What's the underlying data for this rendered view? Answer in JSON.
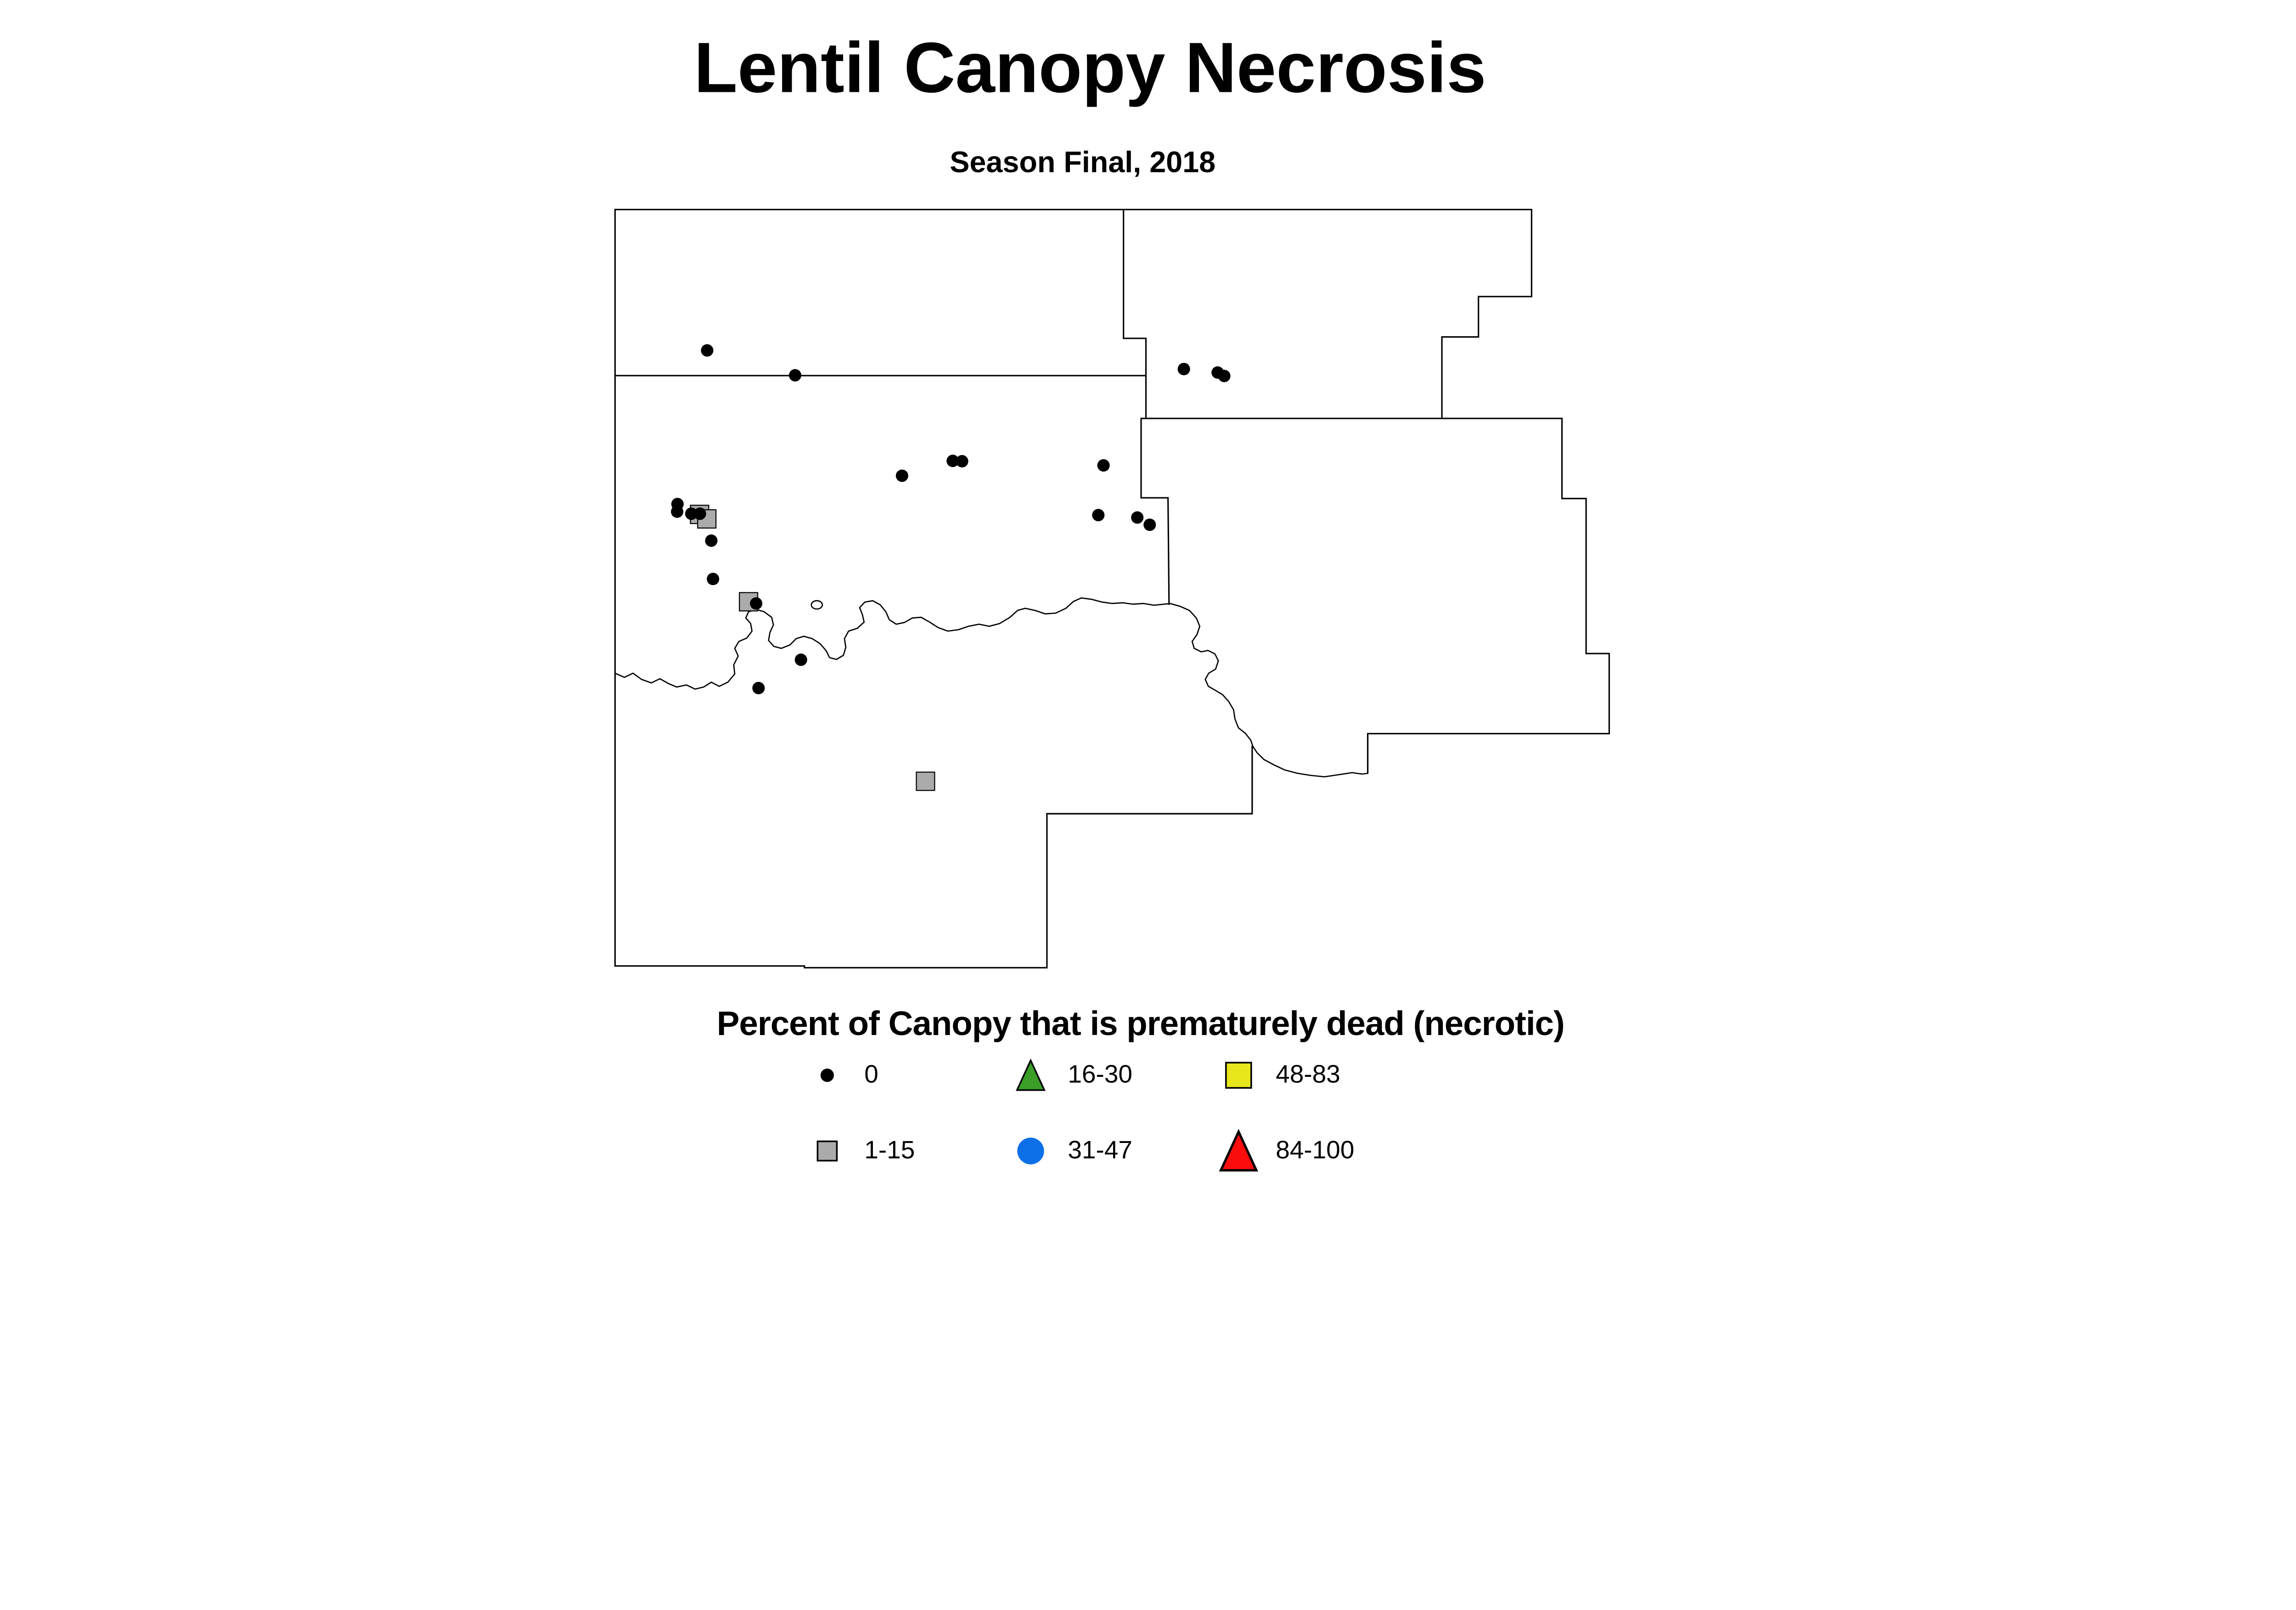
{
  "title": "Lentil Canopy Necrosis",
  "subtitle": "Season Final, 2018",
  "legend": {
    "title": "Percent of Canopy that is prematurely dead (necrotic)",
    "items": [
      {
        "label": "0",
        "shape": "dot",
        "color": "#000000",
        "size": 9,
        "outline": false
      },
      {
        "label": "1-15",
        "shape": "square",
        "color": "#ababab",
        "size": 13,
        "outline": true
      },
      {
        "label": "16-30",
        "shape": "triangle",
        "color": "#3a9e28",
        "size": 20,
        "outline": true
      },
      {
        "label": "31-47",
        "shape": "circle",
        "color": "#0d6fe8",
        "size": 18,
        "outline": false
      },
      {
        "label": "48-83",
        "shape": "square",
        "color": "#e8e71c",
        "size": 17,
        "outline": true
      },
      {
        "label": "84-100",
        "shape": "triangle",
        "color": "#fb0d0d",
        "size": 26,
        "outline": true
      }
    ]
  },
  "map": {
    "point_radius": 18,
    "square_size": 53,
    "dot_color": "#000000",
    "square_color": "#ababab",
    "points_class_0": [
      [
        2050,
        1015
      ],
      [
        2305,
        1087
      ],
      [
        2615,
        1378
      ],
      [
        2762,
        1335
      ],
      [
        2789,
        1336
      ],
      [
        3199,
        1348
      ],
      [
        3184,
        1492
      ],
      [
        3297,
        1499
      ],
      [
        3333,
        1520
      ],
      [
        1964,
        1460
      ],
      [
        1963,
        1482
      ],
      [
        2004,
        1488
      ],
      [
        2029,
        1488
      ],
      [
        2062,
        1566
      ],
      [
        2067,
        1677
      ],
      [
        2192,
        1748
      ],
      [
        2322,
        1911
      ],
      [
        2199,
        1993
      ],
      [
        3432,
        1069
      ],
      [
        3530,
        1079
      ],
      [
        3549,
        1089
      ]
    ],
    "points_class_1_15": [
      [
        2028,
        1490
      ],
      [
        2049,
        1503
      ],
      [
        2170,
        1743
      ],
      [
        2683,
        2263
      ]
    ]
  },
  "chart_data": {
    "type": "scatter",
    "title": "Lentil Canopy Necrosis",
    "subtitle": "Season Final, 2018",
    "legend_title": "Percent of Canopy that is prematurely dead (necrotic)",
    "classes": [
      "0",
      "1-15",
      "16-30",
      "31-47",
      "48-83",
      "84-100"
    ],
    "class_counts": {
      "0": 21,
      "1-15": 4,
      "16-30": 0,
      "31-47": 0,
      "48-83": 0,
      "84-100": 0
    }
  }
}
